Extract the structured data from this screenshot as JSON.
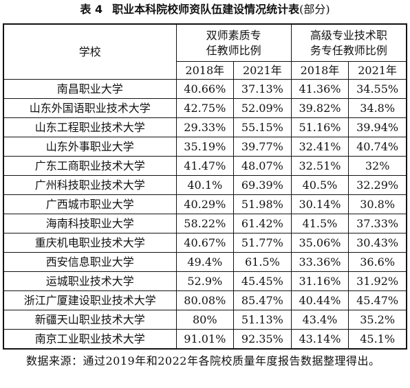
{
  "caption": {
    "number": "表 4",
    "text": "职业本科院校师资队伍建设情况统计表",
    "suffix": "(部分)"
  },
  "table": {
    "header": {
      "school": "学校",
      "groups": [
        "双师素质专任教师比例",
        "高级专业技术职务专任教师比例"
      ],
      "years": [
        "2018年",
        "2021年",
        "2018年",
        "2021年"
      ]
    },
    "rows": [
      [
        "南昌职业大学",
        "40.66%",
        "37.13%",
        "41.36%",
        "34.55%"
      ],
      [
        "山东外国语职业技术大学",
        "42.75%",
        "52.09%",
        "39.82%",
        "34.8%"
      ],
      [
        "山东工程职业技术大学",
        "29.33%",
        "55.15%",
        "51.16%",
        "39.94%"
      ],
      [
        "山东外事职业大学",
        "35.19%",
        "39.77%",
        "32.41%",
        "40.74%"
      ],
      [
        "广东工商职业技术大学",
        "41.47%",
        "48.07%",
        "32.51%",
        "32%"
      ],
      [
        "广州科技职业技术大学",
        "40.1%",
        "69.39%",
        "40.5%",
        "32.29%"
      ],
      [
        "广西城市职业大学",
        "40.29%",
        "51.98%",
        "30.14%",
        "30.8%"
      ],
      [
        "海南科技职业大学",
        "58.22%",
        "61.42%",
        "41.5%",
        "37.33%"
      ],
      [
        "重庆机电职业技术大学",
        "40.67%",
        "51.77%",
        "35.06%",
        "30.43%"
      ],
      [
        "西安信息职业大学",
        "49.4%",
        "61.5%",
        "33.36%",
        "36.6%"
      ],
      [
        "运城职业技术大学",
        "52.9%",
        "45.45%",
        "31.16%",
        "31.92%"
      ],
      [
        "浙江广厦建设职业技术大学",
        "80.08%",
        "85.47%",
        "40.44%",
        "45.47%"
      ],
      [
        "新疆天山职业技术大学",
        "80%",
        "51.13%",
        "43.4%",
        "35.2%"
      ],
      [
        "南京工业职业技术大学",
        "91.01%",
        "92.35%",
        "43.14%",
        "45.1%"
      ]
    ]
  },
  "note": "数据来源：通过2019年和2022年各院校质量年度报告数据整理得出。"
}
